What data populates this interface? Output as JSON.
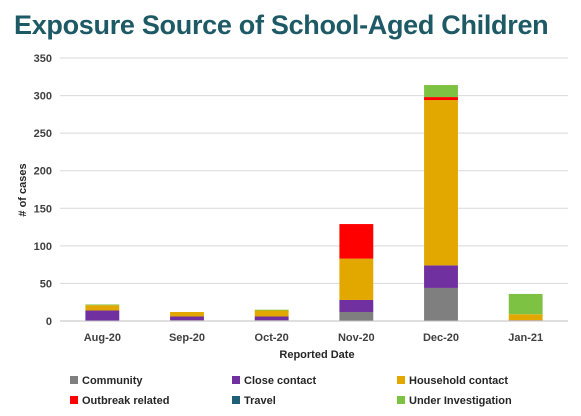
{
  "chart_data": {
    "type": "bar",
    "stacked": true,
    "title": "Exposure Source of School-Aged Children",
    "xlabel": "Reported Date",
    "ylabel": "# of cases",
    "ylim": [
      0,
      350
    ],
    "yticks": [
      0,
      50,
      100,
      150,
      200,
      250,
      300,
      350
    ],
    "grid": true,
    "legend_position": "bottom",
    "categories": [
      "Aug-20",
      "Sep-20",
      "Oct-20",
      "Nov-20",
      "Dec-20",
      "Jan-21"
    ],
    "series": [
      {
        "name": "Community",
        "color": "#7f7f7f",
        "values": [
          0,
          1,
          1,
          12,
          44,
          0
        ]
      },
      {
        "name": "Close contact",
        "color": "#7030a0",
        "values": [
          14,
          5,
          5,
          16,
          30,
          1
        ]
      },
      {
        "name": "Household contact",
        "color": "#e3a800",
        "values": [
          7,
          6,
          8,
          55,
          220,
          8
        ]
      },
      {
        "name": "Outbreak related",
        "color": "#ff0000",
        "values": [
          0,
          0,
          0,
          46,
          4,
          0
        ]
      },
      {
        "name": "Travel",
        "color": "#1f5f73",
        "values": [
          0,
          0,
          0,
          0,
          0,
          0
        ]
      },
      {
        "name": "Under Investigation",
        "color": "#7dc242",
        "values": [
          1,
          0,
          1,
          0,
          16,
          27
        ]
      }
    ]
  }
}
